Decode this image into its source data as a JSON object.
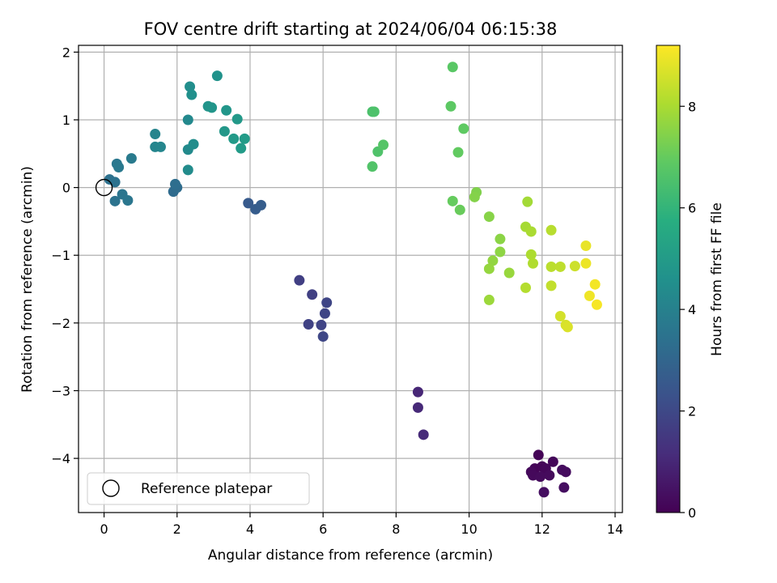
{
  "chart_data": {
    "type": "scatter",
    "title": "FOV centre drift starting at 2024/06/04 06:15:38",
    "xlabel": "Angular distance from reference (arcmin)",
    "ylabel": "Rotation from reference (arcmin)",
    "xlim": [
      -0.7,
      14.2
    ],
    "ylim": [
      -4.8,
      2.1
    ],
    "xticks": [
      0,
      2,
      4,
      6,
      8,
      10,
      12,
      14
    ],
    "yticks": [
      -4,
      -3,
      -2,
      -1,
      0,
      1,
      2
    ],
    "xtick_labels": [
      "0",
      "2",
      "4",
      "6",
      "8",
      "10",
      "12",
      "14"
    ],
    "ytick_labels": [
      "−4",
      "−3",
      "−2",
      "−1",
      "0",
      "1",
      "2"
    ],
    "grid": true,
    "legend": {
      "position": "lower-left",
      "entries": [
        "Reference platepar"
      ]
    },
    "reference_point": {
      "x": 0,
      "y": 0,
      "label": "Reference platepar"
    },
    "colorbar": {
      "label": "Hours from first FF file",
      "colormap": "viridis",
      "range": [
        0,
        9.2
      ],
      "ticks": [
        0,
        2,
        4,
        6,
        8
      ],
      "tick_labels": [
        "0",
        "2",
        "4",
        "6",
        "8"
      ]
    },
    "points": [
      {
        "x": 11.9,
        "y": -3.95,
        "h": 0.05
      },
      {
        "x": 11.8,
        "y": -4.15,
        "h": 0.1
      },
      {
        "x": 12.0,
        "y": -4.12,
        "h": 0.1
      },
      {
        "x": 12.1,
        "y": -4.15,
        "h": 0.15
      },
      {
        "x": 12.3,
        "y": -4.05,
        "h": 0.15
      },
      {
        "x": 11.7,
        "y": -4.2,
        "h": 0.2
      },
      {
        "x": 11.75,
        "y": -4.25,
        "h": 0.2
      },
      {
        "x": 11.95,
        "y": -4.27,
        "h": 0.25
      },
      {
        "x": 12.2,
        "y": -4.25,
        "h": 0.25
      },
      {
        "x": 12.55,
        "y": -4.17,
        "h": 0.3
      },
      {
        "x": 12.65,
        "y": -4.2,
        "h": 0.3
      },
      {
        "x": 12.05,
        "y": -4.5,
        "h": 0.35
      },
      {
        "x": 12.6,
        "y": -4.43,
        "h": 0.35
      },
      {
        "x": 8.6,
        "y": -3.02,
        "h": 1.0
      },
      {
        "x": 8.6,
        "y": -3.25,
        "h": 1.05
      },
      {
        "x": 8.75,
        "y": -3.65,
        "h": 1.1
      },
      {
        "x": 5.35,
        "y": -1.37,
        "h": 1.7
      },
      {
        "x": 5.7,
        "y": -1.58,
        "h": 1.75
      },
      {
        "x": 5.6,
        "y": -2.02,
        "h": 1.8
      },
      {
        "x": 5.95,
        "y": -2.03,
        "h": 1.85
      },
      {
        "x": 6.1,
        "y": -1.7,
        "h": 1.9
      },
      {
        "x": 6.05,
        "y": -1.86,
        "h": 1.9
      },
      {
        "x": 6.0,
        "y": -2.2,
        "h": 1.95
      },
      {
        "x": 3.95,
        "y": -0.23,
        "h": 2.6
      },
      {
        "x": 4.15,
        "y": -0.32,
        "h": 2.65
      },
      {
        "x": 4.3,
        "y": -0.26,
        "h": 2.7
      },
      {
        "x": 1.9,
        "y": -0.06,
        "h": 3.2
      },
      {
        "x": 2.0,
        "y": 0.0,
        "h": 3.25
      },
      {
        "x": 1.95,
        "y": 0.05,
        "h": 3.3
      },
      {
        "x": 0.15,
        "y": 0.12,
        "h": 3.4
      },
      {
        "x": 0.3,
        "y": 0.08,
        "h": 3.45
      },
      {
        "x": 0.3,
        "y": -0.2,
        "h": 3.5
      },
      {
        "x": 0.5,
        "y": -0.1,
        "h": 3.55
      },
      {
        "x": 0.65,
        "y": -0.19,
        "h": 3.6
      },
      {
        "x": 0.35,
        "y": 0.35,
        "h": 3.65
      },
      {
        "x": 0.4,
        "y": 0.3,
        "h": 3.7
      },
      {
        "x": 0.75,
        "y": 0.43,
        "h": 3.75
      },
      {
        "x": 1.4,
        "y": 0.79,
        "h": 4.1
      },
      {
        "x": 1.4,
        "y": 0.6,
        "h": 4.15
      },
      {
        "x": 1.55,
        "y": 0.6,
        "h": 4.2
      },
      {
        "x": 2.3,
        "y": 1.0,
        "h": 4.3
      },
      {
        "x": 2.3,
        "y": 0.56,
        "h": 4.35
      },
      {
        "x": 2.3,
        "y": 0.26,
        "h": 4.4
      },
      {
        "x": 2.45,
        "y": 0.64,
        "h": 4.45
      },
      {
        "x": 2.35,
        "y": 1.49,
        "h": 4.5
      },
      {
        "x": 2.4,
        "y": 1.37,
        "h": 4.55
      },
      {
        "x": 3.1,
        "y": 1.65,
        "h": 4.65
      },
      {
        "x": 2.85,
        "y": 1.2,
        "h": 4.7
      },
      {
        "x": 2.95,
        "y": 1.18,
        "h": 4.75
      },
      {
        "x": 3.35,
        "y": 1.14,
        "h": 4.8
      },
      {
        "x": 3.3,
        "y": 0.83,
        "h": 4.85
      },
      {
        "x": 3.65,
        "y": 1.01,
        "h": 4.9
      },
      {
        "x": 3.55,
        "y": 0.72,
        "h": 4.95
      },
      {
        "x": 3.85,
        "y": 0.72,
        "h": 5.0
      },
      {
        "x": 3.75,
        "y": 0.58,
        "h": 5.0
      },
      {
        "x": 7.35,
        "y": 1.12,
        "h": 6.5
      },
      {
        "x": 7.4,
        "y": 1.12,
        "h": 6.55
      },
      {
        "x": 7.5,
        "y": 0.53,
        "h": 6.6
      },
      {
        "x": 7.35,
        "y": 0.31,
        "h": 6.65
      },
      {
        "x": 7.65,
        "y": 0.63,
        "h": 6.7
      },
      {
        "x": 9.55,
        "y": 1.78,
        "h": 6.8
      },
      {
        "x": 9.5,
        "y": 1.2,
        "h": 6.85
      },
      {
        "x": 9.85,
        "y": 0.87,
        "h": 6.9
      },
      {
        "x": 9.7,
        "y": 0.52,
        "h": 6.95
      },
      {
        "x": 9.55,
        "y": -0.2,
        "h": 7.0
      },
      {
        "x": 9.75,
        "y": -0.33,
        "h": 7.05
      },
      {
        "x": 10.2,
        "y": -0.07,
        "h": 7.4
      },
      {
        "x": 10.15,
        "y": -0.14,
        "h": 7.45
      },
      {
        "x": 10.55,
        "y": -0.43,
        "h": 7.5
      },
      {
        "x": 10.85,
        "y": -0.76,
        "h": 7.55
      },
      {
        "x": 10.85,
        "y": -0.95,
        "h": 7.6
      },
      {
        "x": 10.65,
        "y": -1.08,
        "h": 7.65
      },
      {
        "x": 10.55,
        "y": -1.2,
        "h": 7.7
      },
      {
        "x": 11.1,
        "y": -1.26,
        "h": 7.75
      },
      {
        "x": 10.55,
        "y": -1.66,
        "h": 7.8
      },
      {
        "x": 11.6,
        "y": -0.21,
        "h": 7.9
      },
      {
        "x": 11.55,
        "y": -0.58,
        "h": 7.95
      },
      {
        "x": 11.7,
        "y": -0.65,
        "h": 8.0
      },
      {
        "x": 11.7,
        "y": -0.99,
        "h": 8.05
      },
      {
        "x": 11.75,
        "y": -1.12,
        "h": 8.1
      },
      {
        "x": 11.55,
        "y": -1.48,
        "h": 8.15
      },
      {
        "x": 12.25,
        "y": -0.63,
        "h": 8.2
      },
      {
        "x": 12.25,
        "y": -1.17,
        "h": 8.25
      },
      {
        "x": 12.5,
        "y": -1.17,
        "h": 8.3
      },
      {
        "x": 12.25,
        "y": -1.45,
        "h": 8.35
      },
      {
        "x": 12.9,
        "y": -1.16,
        "h": 8.5
      },
      {
        "x": 12.5,
        "y": -1.9,
        "h": 8.6
      },
      {
        "x": 12.65,
        "y": -2.03,
        "h": 8.65
      },
      {
        "x": 12.7,
        "y": -2.06,
        "h": 8.7
      },
      {
        "x": 13.2,
        "y": -0.86,
        "h": 8.9
      },
      {
        "x": 13.2,
        "y": -1.12,
        "h": 8.95
      },
      {
        "x": 13.3,
        "y": -1.6,
        "h": 9.0
      },
      {
        "x": 13.45,
        "y": -1.43,
        "h": 9.05
      },
      {
        "x": 13.5,
        "y": -1.73,
        "h": 9.1
      }
    ]
  }
}
